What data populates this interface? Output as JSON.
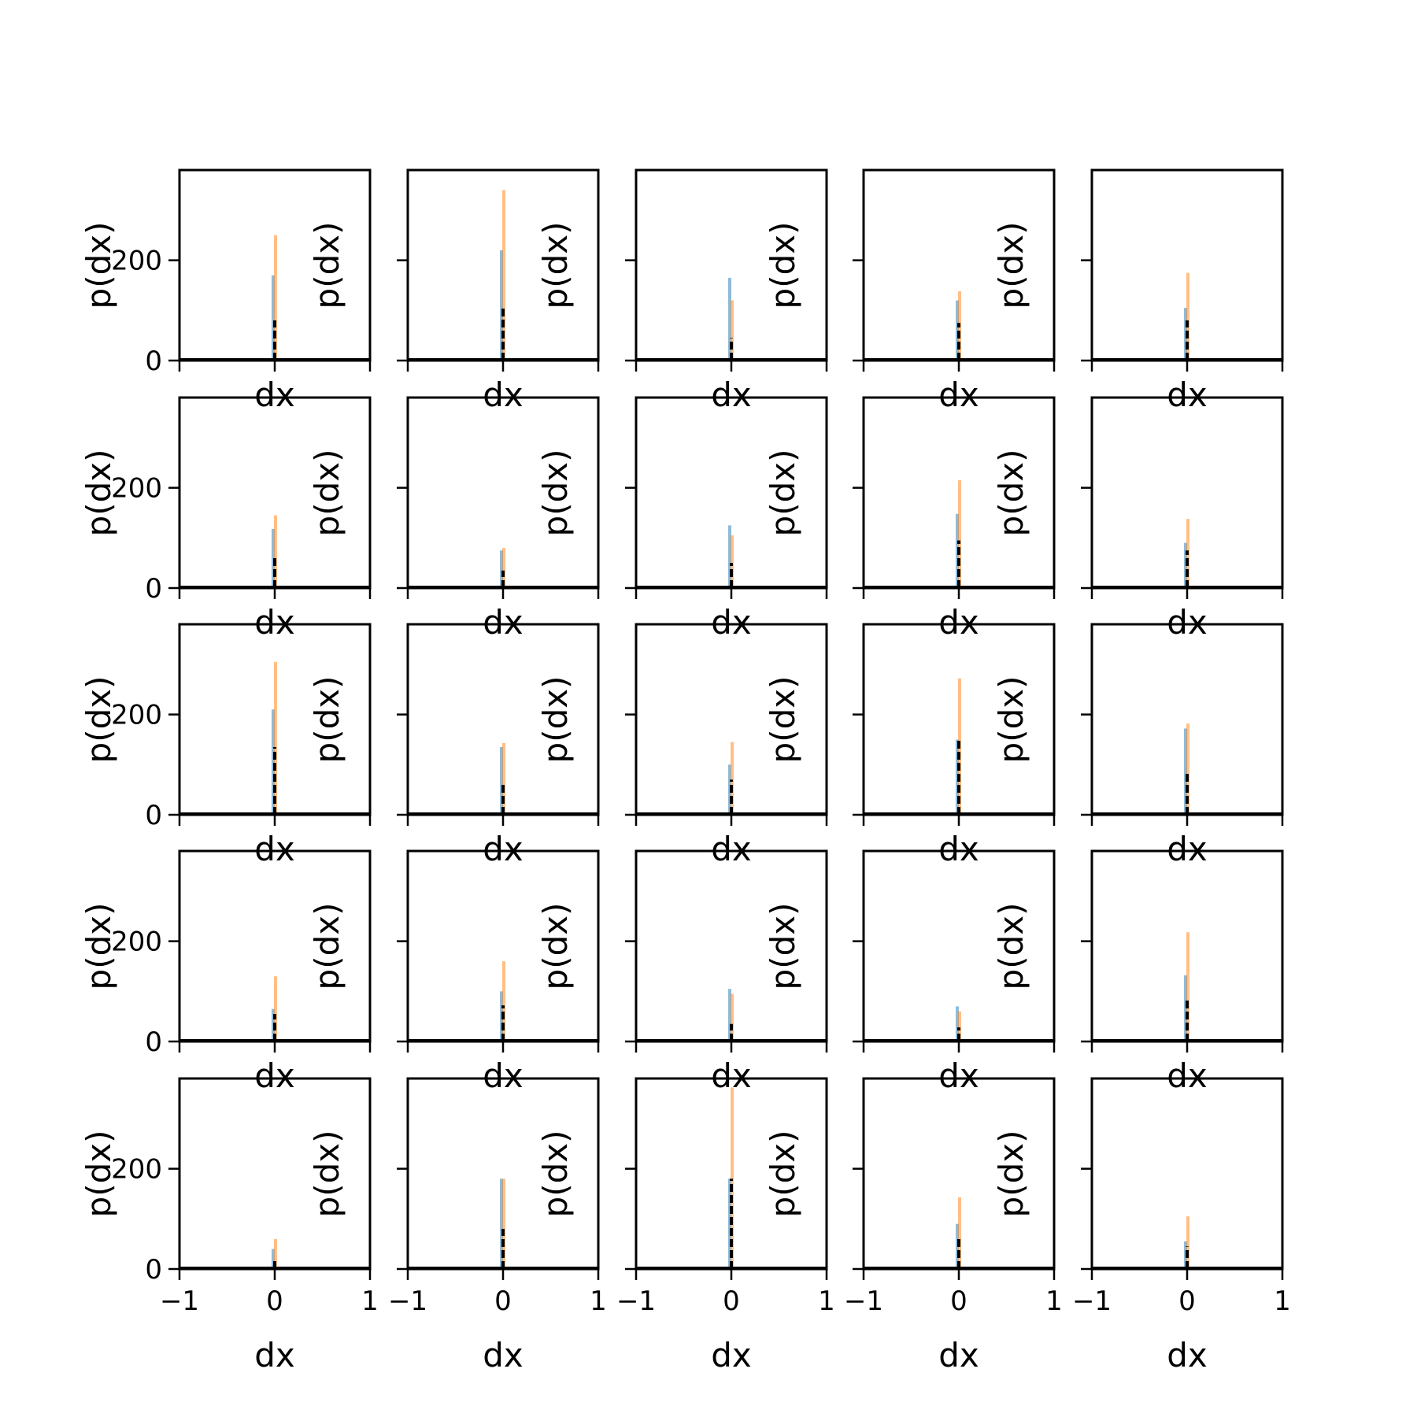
{
  "colors": {
    "series_a": "#1f77b4",
    "series_b": "#ff7f0e",
    "series_c": "#000000"
  },
  "chart_data": {
    "type": "histogram-grid",
    "rows": 5,
    "cols": 5,
    "xlabel": "dx",
    "ylabel": "p(dx)",
    "xlim": [
      -1,
      1
    ],
    "ylim": [
      0,
      380
    ],
    "xticks": [
      -1,
      0,
      1
    ],
    "xtick_labels": [
      "−1",
      "0",
      "1"
    ],
    "yticks": [
      0,
      200
    ],
    "ytick_labels": [
      "0",
      "200"
    ],
    "series": [
      {
        "name": "",
        "color": "#1f77b4",
        "opacity": 0.5
      },
      {
        "name": "",
        "color": "#ff7f0e",
        "opacity": 0.5
      },
      {
        "name": "",
        "color": "#000000",
        "opacity": 1.0,
        "style": "dashed"
      }
    ],
    "panels": [
      {
        "series_a_peak": 170,
        "series_b_peak": 250,
        "series_c_peak": 80
      },
      {
        "series_a_peak": 220,
        "series_b_peak": 340,
        "series_c_peak": 105
      },
      {
        "series_a_peak": 165,
        "series_b_peak": 120,
        "series_c_peak": 45
      },
      {
        "series_a_peak": 120,
        "series_b_peak": 138,
        "series_c_peak": 75
      },
      {
        "series_a_peak": 105,
        "series_b_peak": 175,
        "series_c_peak": 80
      },
      {
        "series_a_peak": 118,
        "series_b_peak": 145,
        "series_c_peak": 62
      },
      {
        "series_a_peak": 75,
        "series_b_peak": 80,
        "series_c_peak": 35
      },
      {
        "series_a_peak": 125,
        "series_b_peak": 105,
        "series_c_peak": 50
      },
      {
        "series_a_peak": 148,
        "series_b_peak": 215,
        "series_c_peak": 95
      },
      {
        "series_a_peak": 90,
        "series_b_peak": 138,
        "series_c_peak": 75
      },
      {
        "series_a_peak": 210,
        "series_b_peak": 305,
        "series_c_peak": 135
      },
      {
        "series_a_peak": 135,
        "series_b_peak": 143,
        "series_c_peak": 60
      },
      {
        "series_a_peak": 100,
        "series_b_peak": 145,
        "series_c_peak": 70
      },
      {
        "series_a_peak": 150,
        "series_b_peak": 272,
        "series_c_peak": 150
      },
      {
        "series_a_peak": 172,
        "series_b_peak": 182,
        "series_c_peak": 85
      },
      {
        "series_a_peak": 65,
        "series_b_peak": 130,
        "series_c_peak": 55
      },
      {
        "series_a_peak": 100,
        "series_b_peak": 160,
        "series_c_peak": 72
      },
      {
        "series_a_peak": 105,
        "series_b_peak": 95,
        "series_c_peak": 35
      },
      {
        "series_a_peak": 70,
        "series_b_peak": 60,
        "series_c_peak": 28
      },
      {
        "series_a_peak": 132,
        "series_b_peak": 218,
        "series_c_peak": 88
      },
      {
        "series_a_peak": 40,
        "series_b_peak": 60,
        "series_c_peak": 22
      },
      {
        "series_a_peak": 180,
        "series_b_peak": 180,
        "series_c_peak": 80
      },
      {
        "series_a_peak": 180,
        "series_b_peak": 362,
        "series_c_peak": 180
      },
      {
        "series_a_peak": 90,
        "series_b_peak": 143,
        "series_c_peak": 60
      },
      {
        "series_a_peak": 55,
        "series_b_peak": 105,
        "series_c_peak": 45
      }
    ]
  }
}
